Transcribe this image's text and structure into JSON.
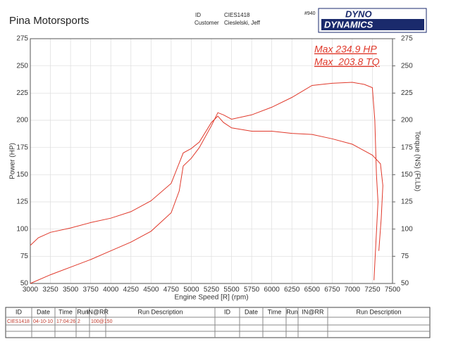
{
  "header": {
    "shop": "Pina Motorsports",
    "id_label": "ID",
    "id_value": "CIES1418",
    "customer_label": "Customer",
    "customer_value": "Cieslelski, Jeff",
    "number": "#940",
    "logo_top": "DYNO",
    "logo_bottom": "DYNAMICS"
  },
  "chart_data": {
    "type": "line",
    "x_label": "Engine Speed [R] (rpm)",
    "y_label": "Power (HP)",
    "y2_label": "Torque (NS) (Ft.Lb)",
    "annotations": [
      "Max 234.9 HP",
      "Max  203.8 TQ"
    ],
    "xlim": [
      3000,
      7500
    ],
    "xticks": [
      3000,
      3250,
      3500,
      3750,
      4000,
      4250,
      4500,
      4750,
      5000,
      5250,
      5500,
      5750,
      6000,
      6250,
      6500,
      6750,
      7000,
      7250,
      7500
    ],
    "ylim": [
      50,
      275
    ],
    "yticks": [
      50,
      75,
      100,
      125,
      150,
      175,
      200,
      225,
      250,
      275
    ],
    "y2lim": [
      50,
      275
    ],
    "y2ticks": [
      50,
      75,
      100,
      125,
      150,
      175,
      200,
      225,
      250,
      275
    ],
    "grid": true,
    "series": [
      {
        "name": "Power",
        "color": "#e0392b",
        "x": [
          3000,
          3250,
          3500,
          3750,
          4000,
          4250,
          4500,
          4750,
          4850,
          4900,
          5000,
          5100,
          5250,
          5330,
          5400,
          5500,
          5750,
          6000,
          6250,
          6500,
          6750,
          7000,
          7150,
          7250,
          7280,
          7300,
          7320,
          7270
        ],
        "values": [
          50,
          58,
          65,
          72,
          80,
          88,
          98,
          115,
          135,
          158,
          165,
          175,
          195,
          207,
          205,
          201,
          205,
          212,
          221,
          232,
          234,
          234.9,
          233,
          230,
          200,
          150,
          125,
          53
        ]
      },
      {
        "name": "Torque",
        "color": "#e0392b",
        "axis": "y2",
        "x": [
          3000,
          3100,
          3250,
          3500,
          3750,
          4000,
          4250,
          4500,
          4750,
          4900,
          5000,
          5100,
          5250,
          5330,
          5400,
          5500,
          5750,
          6000,
          6250,
          6500,
          6750,
          7000,
          7250,
          7350,
          7380,
          7360,
          7330
        ],
        "values": [
          85,
          92,
          97,
          101,
          106,
          110,
          116,
          126,
          142,
          170,
          174,
          180,
          198,
          203.8,
          198,
          193,
          190,
          190,
          188,
          187,
          183,
          178,
          168,
          160,
          140,
          110,
          80
        ]
      }
    ]
  },
  "table": {
    "headers": [
      "ID",
      "Date",
      "Time",
      "Run",
      "IN@RR",
      "Run Description",
      "ID",
      "Date",
      "Time",
      "Run",
      "IN@RR",
      "Run Description"
    ],
    "rows": [
      [
        "CIES1418",
        "04-10-10",
        "17:04:26",
        "2",
        "100@150"
      ]
    ]
  }
}
